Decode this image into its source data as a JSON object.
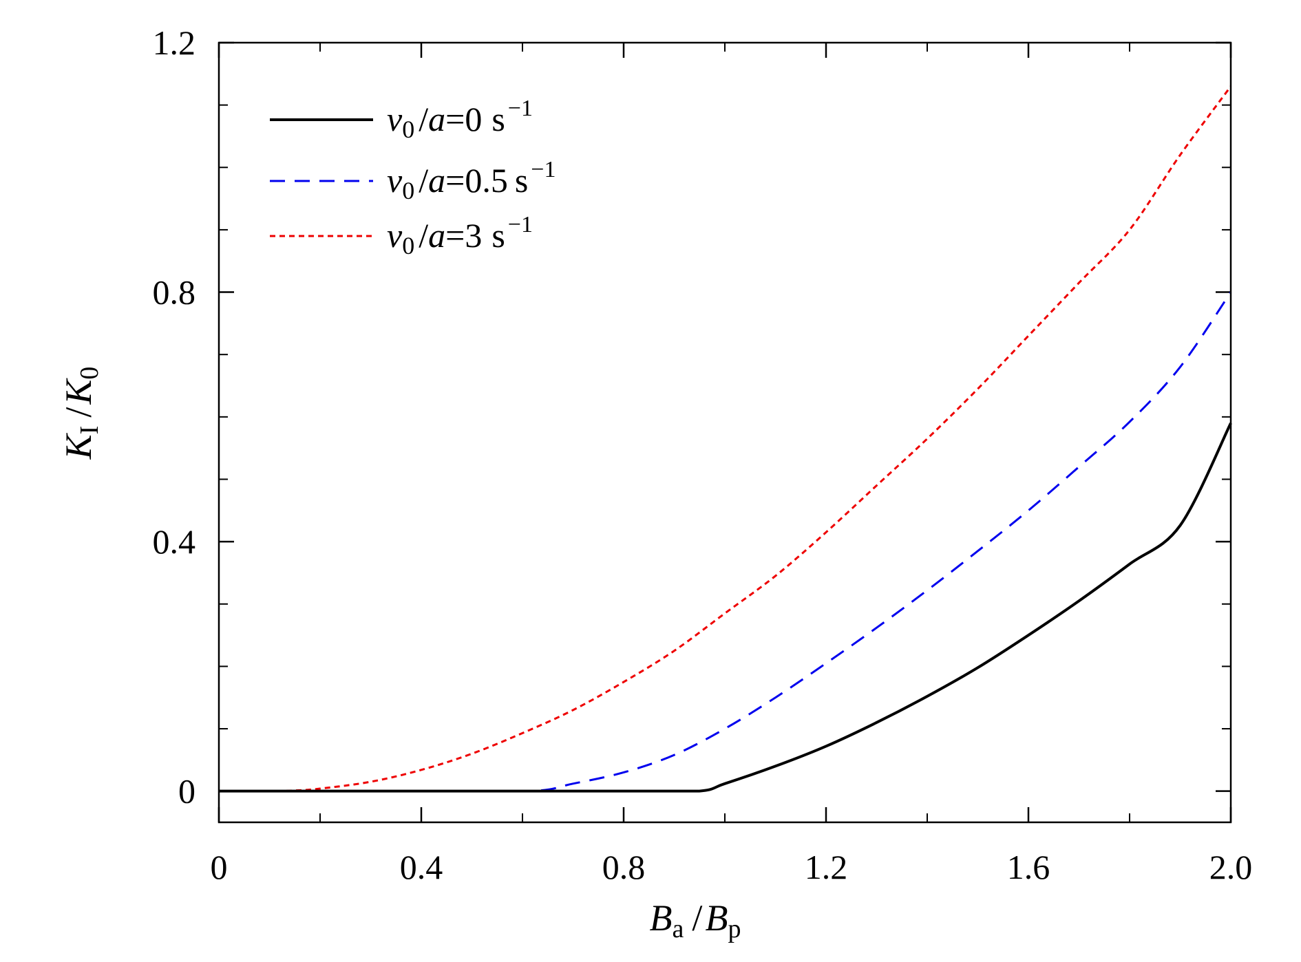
{
  "chart_data": {
    "type": "line",
    "xlim": [
      0,
      2.0
    ],
    "ylim": [
      -0.05,
      1.2
    ],
    "x_ticks": [
      "0",
      "0.4",
      "0.8",
      "1.2",
      "1.6",
      "2.0"
    ],
    "x_tick_values": [
      0,
      0.4,
      0.8,
      1.2,
      1.6,
      2.0
    ],
    "x_minor_tick_values": [
      0.2,
      0.6,
      1.0,
      1.4,
      1.8
    ],
    "y_ticks": [
      "0",
      "0.4",
      "0.8",
      "1.2"
    ],
    "y_tick_values": [
      0,
      0.4,
      0.8,
      1.2
    ],
    "y_minor_tick_values": [
      0.1,
      0.2,
      0.3,
      0.5,
      0.6,
      0.7,
      0.9,
      1.0,
      1.1
    ],
    "xlabel": {
      "main": "B",
      "sub": "a",
      "sep": "/",
      "main2": "B",
      "sub2": "p"
    },
    "ylabel": {
      "main": "K",
      "sub": "I",
      "sep": "/",
      "main2": "K",
      "sub2": "0"
    },
    "grid": false,
    "legend_position": "top-left",
    "series": [
      {
        "legend": {
          "v": "v",
          "sub": "0",
          "sep": "/",
          "a": "a",
          "eq": "=",
          "val": "0",
          "unit": "s",
          "exp": "−1"
        },
        "color": "#000000",
        "style": "solid",
        "x": [
          0,
          0.2,
          0.4,
          0.6,
          0.8,
          0.948,
          1.0,
          1.1,
          1.2,
          1.3,
          1.4,
          1.5,
          1.6,
          1.7,
          1.8,
          1.9,
          2.0
        ],
        "y": [
          0,
          0,
          0,
          0,
          0,
          0,
          0.012,
          0.04,
          0.072,
          0.11,
          0.152,
          0.198,
          0.25,
          0.305,
          0.364,
          0.426,
          0.59
        ]
      },
      {
        "legend": {
          "v": "v",
          "sub": "0",
          "sep": "/",
          "a": "a",
          "eq": "=",
          "val": "0.5",
          "unit": "s",
          "exp": "−1"
        },
        "color": "#0000ee",
        "style": "dashed",
        "x": [
          0,
          0.2,
          0.4,
          0.617,
          0.7,
          0.8,
          0.9,
          1.0,
          1.1,
          1.2,
          1.3,
          1.4,
          1.5,
          1.6,
          1.7,
          1.8,
          1.9,
          2.0
        ],
        "y": [
          0,
          0,
          0,
          0,
          0.012,
          0.03,
          0.058,
          0.1,
          0.15,
          0.205,
          0.262,
          0.322,
          0.385,
          0.45,
          0.52,
          0.592,
          0.68,
          0.8
        ]
      },
      {
        "legend": {
          "v": "v",
          "sub": "0",
          "sep": "/",
          "a": "a",
          "eq": "=",
          "val": "3",
          "unit": "s",
          "exp": "−1"
        },
        "color": "#ee0000",
        "style": "dotted",
        "x": [
          0,
          0.1,
          0.15,
          0.2,
          0.3,
          0.4,
          0.5,
          0.6,
          0.7,
          0.8,
          0.9,
          1.0,
          1.1,
          1.2,
          1.3,
          1.4,
          1.5,
          1.6,
          1.7,
          1.8,
          1.9,
          2.0
        ],
        "y": [
          0,
          0,
          0.001,
          0.004,
          0.015,
          0.034,
          0.06,
          0.093,
          0.13,
          0.175,
          0.225,
          0.285,
          0.345,
          0.415,
          0.49,
          0.565,
          0.645,
          0.73,
          0.815,
          0.9,
          1.02,
          1.13
        ]
      }
    ]
  }
}
